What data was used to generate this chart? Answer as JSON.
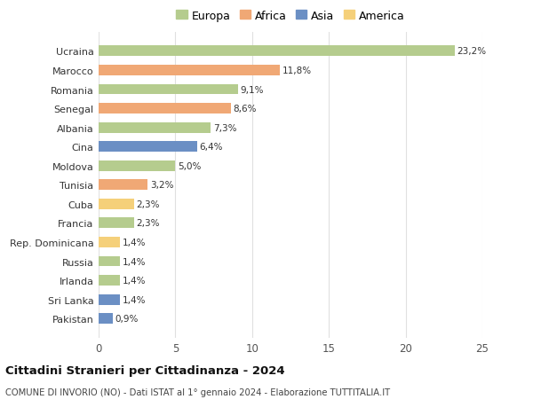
{
  "countries": [
    "Ucraina",
    "Marocco",
    "Romania",
    "Senegal",
    "Albania",
    "Cina",
    "Moldova",
    "Tunisia",
    "Cuba",
    "Francia",
    "Rep. Dominicana",
    "Russia",
    "Irlanda",
    "Sri Lanka",
    "Pakistan"
  ],
  "values": [
    23.2,
    11.8,
    9.1,
    8.6,
    7.3,
    6.4,
    5.0,
    3.2,
    2.3,
    2.3,
    1.4,
    1.4,
    1.4,
    1.4,
    0.9
  ],
  "labels": [
    "23,2%",
    "11,8%",
    "9,1%",
    "8,6%",
    "7,3%",
    "6,4%",
    "5,0%",
    "3,2%",
    "2,3%",
    "2,3%",
    "1,4%",
    "1,4%",
    "1,4%",
    "1,4%",
    "0,9%"
  ],
  "continents": [
    "Europa",
    "Africa",
    "Europa",
    "Africa",
    "Europa",
    "Asia",
    "Europa",
    "Africa",
    "America",
    "Europa",
    "America",
    "Europa",
    "Europa",
    "Asia",
    "Asia"
  ],
  "colors": {
    "Europa": "#b5cc8e",
    "Africa": "#f0a875",
    "Asia": "#6b8fc4",
    "America": "#f5d07a"
  },
  "legend_order": [
    "Europa",
    "Africa",
    "Asia",
    "America"
  ],
  "xlim": [
    0,
    25
  ],
  "xticks": [
    0,
    5,
    10,
    15,
    20,
    25
  ],
  "title": "Cittadini Stranieri per Cittadinanza - 2024",
  "subtitle": "COMUNE DI INVORIO (NO) - Dati ISTAT al 1° gennaio 2024 - Elaborazione TUTTITALIA.IT",
  "bg_color": "#ffffff",
  "grid_color": "#e0e0e0"
}
